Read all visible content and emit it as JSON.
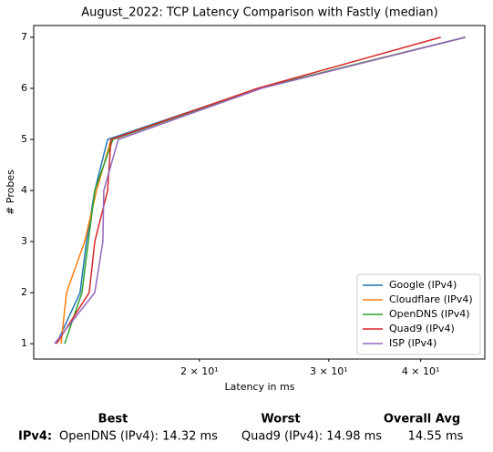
{
  "chart_data": {
    "type": "line",
    "title": "August_2022: TCP Latency Comparison with Fastly (median)",
    "xlabel": "Latency in ms",
    "ylabel": "# Probes",
    "xscale": "log",
    "grid": false,
    "legend": "lower right",
    "xlim": [
      11.9,
      48.9
    ],
    "ylim": [
      0.7,
      7.23
    ],
    "xticks": [
      {
        "value": 20,
        "label": "2 × 10¹"
      },
      {
        "value": 30,
        "label": "3 × 10¹"
      },
      {
        "value": 40,
        "label": "4 × 10¹"
      }
    ],
    "yticks": [
      1,
      2,
      3,
      4,
      5,
      6,
      7
    ],
    "y": [
      1,
      2,
      3,
      4,
      5,
      6,
      7
    ],
    "series": [
      {
        "name": "Google (IPv4)",
        "color": "#1f77b4",
        "x": [
          12.78,
          13.76,
          14.04,
          14.41,
          15.0,
          24.1,
          46.0
        ]
      },
      {
        "name": "Cloudflare (IPv4)",
        "color": "#ff7f0e",
        "x": [
          12.96,
          13.19,
          13.96,
          14.49,
          15.16,
          24.1,
          46.0
        ]
      },
      {
        "name": "OpenDNS (IPv4)",
        "color": "#2ca02c",
        "x": [
          13.11,
          13.84,
          14.12,
          14.41,
          15.25,
          24.1,
          46.0
        ]
      },
      {
        "name": "Quad9 (IPv4)",
        "color": "#d62728",
        "x": [
          12.78,
          14.16,
          14.41,
          15.0,
          15.16,
          24.0,
          42.6
        ]
      },
      {
        "name": "ISP (IPv4)",
        "color": "#9467bd",
        "x": [
          12.7,
          14.41,
          14.78,
          14.82,
          15.51,
          24.3,
          46.0
        ]
      }
    ]
  },
  "table": {
    "columns": [
      "Best",
      "Worst",
      "Overall Avg"
    ],
    "rows": [
      [
        "IPv4:",
        "OpenDNS (IPv4): 14.32 ms",
        "Quad9 (IPv4): 14.98 ms",
        "14.55 ms"
      ]
    ]
  }
}
